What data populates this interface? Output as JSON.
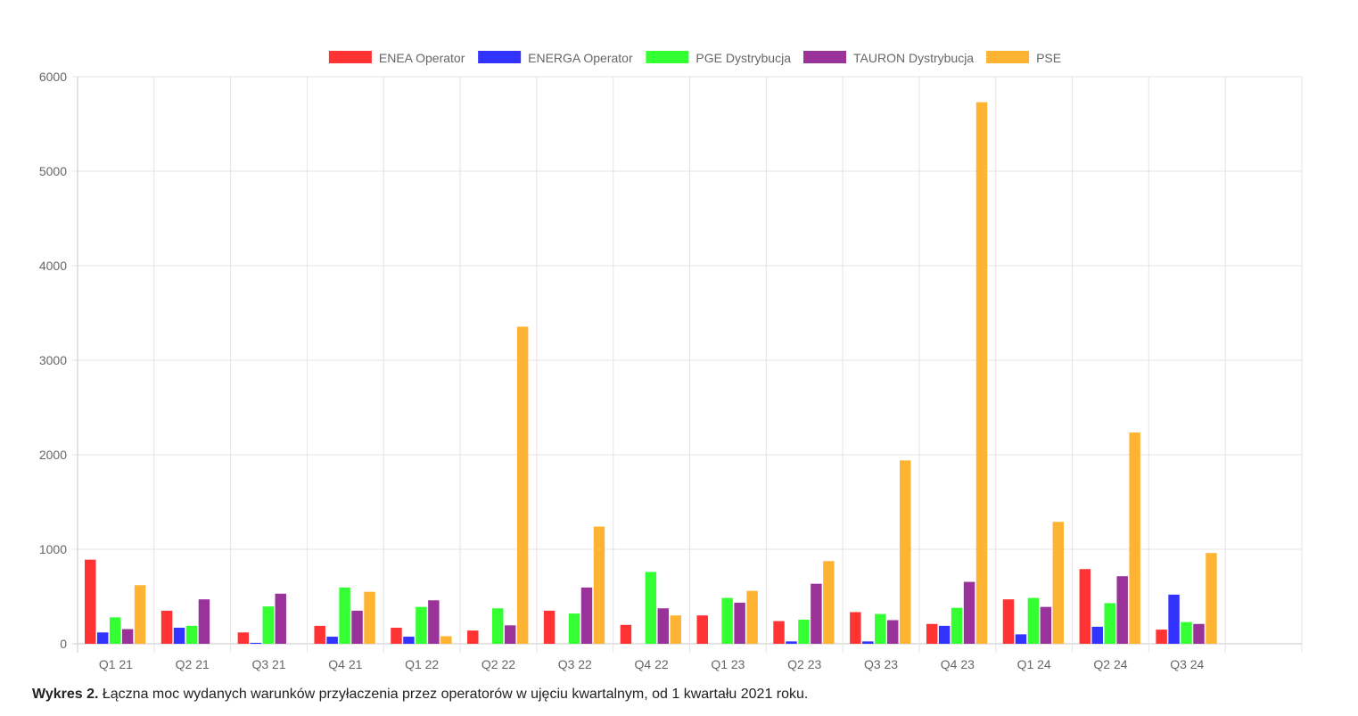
{
  "chart_data": {
    "type": "bar",
    "categories": [
      "Q1 21",
      "Q2 21",
      "Q3 21",
      "Q4 21",
      "Q1 22",
      "Q2 22",
      "Q3 22",
      "Q4 22",
      "Q1 23",
      "Q2 23",
      "Q3 23",
      "Q4 23",
      "Q1 24",
      "Q2 24",
      "Q3 24",
      ""
    ],
    "series": [
      {
        "name": "ENEA Operator",
        "color": "#ff3333",
        "values": [
          890,
          350,
          120,
          190,
          170,
          140,
          350,
          200,
          300,
          240,
          335,
          210,
          470,
          790,
          150,
          null
        ]
      },
      {
        "name": "ENERGA Operator",
        "color": "#3333ff",
        "values": [
          120,
          170,
          10,
          75,
          75,
          0,
          0,
          0,
          0,
          25,
          25,
          190,
          100,
          180,
          520,
          null
        ]
      },
      {
        "name": "PGE Dystrybucja",
        "color": "#33ff33",
        "values": [
          280,
          190,
          395,
          595,
          390,
          375,
          320,
          760,
          485,
          255,
          315,
          380,
          485,
          430,
          230,
          null
        ]
      },
      {
        "name": "TAURON Dystrybucja",
        "color": "#993399",
        "values": [
          155,
          470,
          530,
          350,
          460,
          195,
          595,
          375,
          435,
          635,
          250,
          655,
          390,
          715,
          210,
          null
        ]
      },
      {
        "name": "PSE",
        "color": "#ffb333",
        "values": [
          620,
          0,
          0,
          550,
          80,
          3355,
          1240,
          300,
          560,
          875,
          1940,
          5730,
          1290,
          2235,
          960,
          null
        ]
      }
    ],
    "ylim": [
      0,
      6000
    ],
    "yticks": [
      "0",
      "1000",
      "2000",
      "3000",
      "4000",
      "5000",
      "6000"
    ],
    "grid": true,
    "legend": "top-center",
    "title": "",
    "xlabel": "",
    "ylabel": ""
  },
  "caption": {
    "label": "Wykres 2.",
    "text": "Łączna moc wydanych warunków przyłaczenia przez operatorów w ujęciu kwartalnym, od 1 kwartału 2021 roku."
  }
}
